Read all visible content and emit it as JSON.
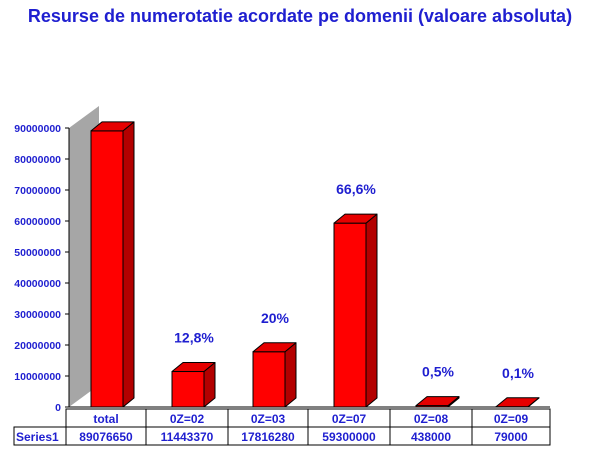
{
  "chart_data": {
    "type": "bar",
    "title": "Resurse de numerotatie acordate pe domenii (valoare absoluta)",
    "xlabel": "",
    "ylabel": "",
    "ylim": [
      0,
      90000000
    ],
    "yticks": [
      "0",
      "10000000",
      "20000000",
      "30000000",
      "40000000",
      "50000000",
      "60000000",
      "70000000",
      "80000000",
      "90000000"
    ],
    "categories": [
      "total",
      "0Z=02",
      "0Z=03",
      "0Z=07",
      "0Z=08",
      "0Z=09"
    ],
    "series": [
      {
        "name": "Series1",
        "values": [
          89076650,
          11443370,
          17816280,
          59300000,
          438000,
          79000
        ],
        "value_labels": [
          "89076650",
          "11443370",
          "17816280",
          "59300000",
          "438000",
          "79000"
        ]
      }
    ],
    "annotations": [
      "",
      "12,8%",
      "20%",
      "66,6%",
      "0,5%",
      "0,1%"
    ],
    "bar_color": "#ff0000",
    "bar_side_color": "#b30000",
    "bar_top_color": "#e60000",
    "wall_color": "#a6a6a6",
    "text_color": "#1f1fd0",
    "grid": false,
    "legend": "none",
    "data_table": true
  }
}
